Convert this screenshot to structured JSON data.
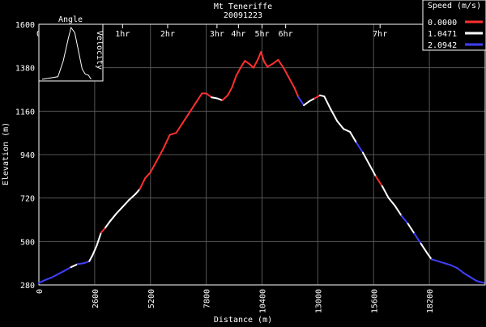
{
  "chart_data": {
    "type": "line",
    "title": "Mt Teneriffe",
    "subtitle": "20091223",
    "xlabel": "Distance (m)",
    "ylabel": "Elevation (m)",
    "xlim": [
      0,
      20800
    ],
    "ylim": [
      280,
      1600
    ],
    "x_ticks": [
      0,
      2600,
      5200,
      7800,
      10400,
      13000,
      15600,
      18200
    ],
    "y_ticks": [
      280,
      500,
      720,
      940,
      1160,
      1380,
      1600
    ],
    "time_ticks": [
      {
        "label": "0",
        "x": 0
      },
      {
        "label": "1hr",
        "x": 3900
      },
      {
        "label": "2hr",
        "x": 6000
      },
      {
        "label": "3hr",
        "x": 8300
      },
      {
        "label": "4hr",
        "x": 9300
      },
      {
        "label": "5hr",
        "x": 10400
      },
      {
        "label": "6hr",
        "x": 11500
      },
      {
        "label": "7hr",
        "x": 15900
      }
    ],
    "grid": true,
    "legend": {
      "title": "Speed (m/s)",
      "placement": "top-right",
      "entries": [
        {
          "label": "0.0000",
          "color": "#ff3030"
        },
        {
          "label": "1.0471",
          "color": "#ffffff"
        },
        {
          "label": "2.0942",
          "color": "#4040ff"
        }
      ]
    },
    "inset": {
      "title": "Angle",
      "ylabel": "Velocity",
      "curve": [
        [
          0,
          0
        ],
        [
          0.3,
          0.05
        ],
        [
          0.4,
          0.35
        ],
        [
          0.5,
          0.8
        ],
        [
          0.55,
          1.0
        ],
        [
          0.62,
          0.9
        ],
        [
          0.7,
          0.5
        ],
        [
          0.76,
          0.2
        ],
        [
          0.82,
          0.1
        ],
        [
          0.88,
          0.08
        ],
        [
          0.93,
          0.0
        ]
      ]
    },
    "series": [
      {
        "values": [
          [
            0,
            290,
            2
          ],
          [
            300,
            305,
            2
          ],
          [
            600,
            318,
            2
          ],
          [
            900,
            335,
            2
          ],
          [
            1200,
            352,
            2
          ],
          [
            1500,
            370,
            2
          ],
          [
            1800,
            385,
            1
          ],
          [
            2100,
            390,
            2
          ],
          [
            2350,
            400,
            2
          ],
          [
            2500,
            430,
            1
          ],
          [
            2700,
            480,
            1
          ],
          [
            2900,
            545,
            1
          ],
          [
            3100,
            570,
            0
          ],
          [
            3300,
            600,
            1
          ],
          [
            3600,
            640,
            1
          ],
          [
            3900,
            675,
            1
          ],
          [
            4200,
            710,
            1
          ],
          [
            4500,
            740,
            1
          ],
          [
            4700,
            765,
            1
          ],
          [
            4950,
            820,
            0
          ],
          [
            5200,
            850,
            0
          ],
          [
            5500,
            910,
            0
          ],
          [
            5800,
            970,
            0
          ],
          [
            6100,
            1040,
            0
          ],
          [
            6400,
            1050,
            0
          ],
          [
            6700,
            1100,
            0
          ],
          [
            7000,
            1150,
            0
          ],
          [
            7300,
            1200,
            0
          ],
          [
            7600,
            1250,
            0
          ],
          [
            7800,
            1250,
            0
          ],
          [
            8050,
            1230,
            0
          ],
          [
            8300,
            1225,
            1
          ],
          [
            8550,
            1215,
            1
          ],
          [
            8800,
            1240,
            0
          ],
          [
            9000,
            1280,
            0
          ],
          [
            9200,
            1340,
            0
          ],
          [
            9400,
            1380,
            0
          ],
          [
            9600,
            1415,
            0
          ],
          [
            9800,
            1400,
            0
          ],
          [
            10000,
            1380,
            0
          ],
          [
            10200,
            1420,
            0
          ],
          [
            10350,
            1460,
            0
          ],
          [
            10500,
            1410,
            0
          ],
          [
            10650,
            1385,
            0
          ],
          [
            10900,
            1400,
            0
          ],
          [
            11150,
            1420,
            0
          ],
          [
            11400,
            1380,
            0
          ],
          [
            11650,
            1330,
            0
          ],
          [
            11900,
            1280,
            0
          ],
          [
            12100,
            1230,
            0
          ],
          [
            12350,
            1190,
            2
          ],
          [
            12600,
            1210,
            1
          ],
          [
            12850,
            1225,
            1
          ],
          [
            13100,
            1240,
            0
          ],
          [
            13300,
            1235,
            1
          ],
          [
            13600,
            1170,
            1
          ],
          [
            13900,
            1110,
            1
          ],
          [
            14200,
            1070,
            1
          ],
          [
            14500,
            1055,
            1
          ],
          [
            14800,
            1000,
            1
          ],
          [
            15100,
            950,
            2
          ],
          [
            15400,
            890,
            1
          ],
          [
            15700,
            830,
            1
          ],
          [
            16000,
            780,
            0
          ],
          [
            16300,
            720,
            1
          ],
          [
            16600,
            680,
            1
          ],
          [
            16900,
            630,
            1
          ],
          [
            17200,
            590,
            2
          ],
          [
            17500,
            540,
            1
          ],
          [
            17800,
            490,
            2
          ],
          [
            18100,
            440,
            1
          ],
          [
            18300,
            410,
            1
          ],
          [
            18600,
            400,
            2
          ],
          [
            18900,
            390,
            2
          ],
          [
            19200,
            380,
            2
          ],
          [
            19500,
            365,
            2
          ],
          [
            19800,
            340,
            2
          ],
          [
            20100,
            320,
            2
          ],
          [
            20400,
            300,
            2
          ],
          [
            20750,
            290,
            2
          ]
        ]
      }
    ]
  }
}
